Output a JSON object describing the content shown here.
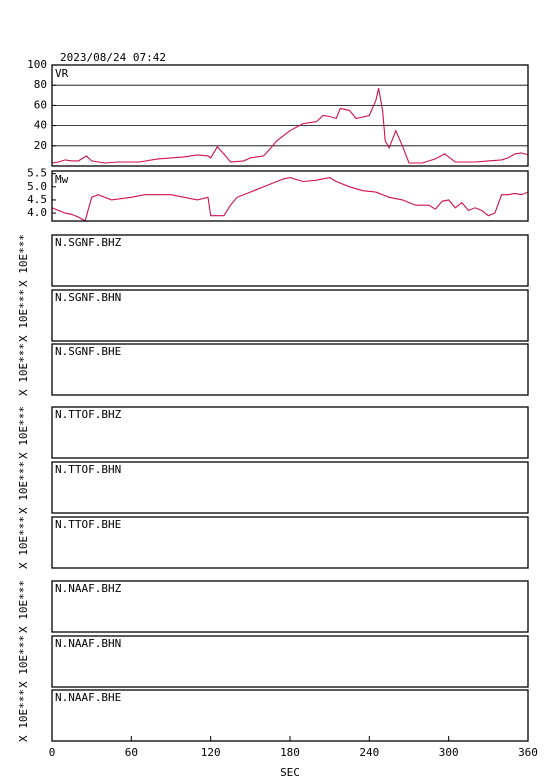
{
  "title": "2023/08/24 07:42",
  "chart_data": [
    {
      "type": "line",
      "label": "VR",
      "color": "#d0104c",
      "ylim": [
        0,
        100
      ],
      "yticks": [
        20,
        40,
        60,
        80,
        100
      ],
      "grid": true,
      "x": [
        0,
        5,
        10,
        15,
        20,
        26,
        30,
        40,
        50,
        60,
        66,
        80,
        90,
        100,
        110,
        118,
        120,
        125,
        130,
        135,
        145,
        150,
        160,
        165,
        170,
        180,
        190,
        200,
        205,
        210,
        215,
        218,
        225,
        230,
        240,
        245,
        247,
        250,
        252,
        255,
        260,
        265,
        270,
        280,
        290,
        297,
        305,
        320,
        330,
        340,
        345,
        350,
        355,
        360
      ],
      "values": [
        3,
        4,
        6,
        5,
        5,
        10,
        5,
        3,
        4,
        4,
        4,
        7,
        8,
        9,
        11,
        10,
        8,
        19,
        12,
        4,
        5,
        8,
        10,
        17,
        25,
        35,
        42,
        44,
        50,
        49,
        47,
        57,
        55,
        47,
        50,
        65,
        77,
        55,
        25,
        18,
        35,
        20,
        3,
        3,
        7,
        12,
        4,
        4,
        5,
        6,
        8,
        12,
        13,
        11
      ]
    },
    {
      "type": "line",
      "label": "Mw",
      "color": "#d0104c",
      "ylim": [
        3.7,
        5.6
      ],
      "yticks": [
        {
          "value": 4,
          "label": "4.0"
        },
        4.5,
        {
          "value": 5,
          "label": "5.0"
        },
        5.5
      ],
      "grid": false,
      "x": [
        0,
        5,
        10,
        15,
        20,
        25,
        30,
        35,
        45,
        60,
        70,
        80,
        90,
        100,
        110,
        118,
        120,
        130,
        135,
        140,
        150,
        160,
        170,
        175,
        180,
        190,
        200,
        210,
        215,
        225,
        235,
        245,
        255,
        265,
        275,
        285,
        290,
        295,
        300,
        305,
        310,
        315,
        320,
        325,
        330,
        335,
        340,
        345,
        350,
        355,
        360
      ],
      "values": [
        4.2,
        4.1,
        4.0,
        3.95,
        3.85,
        3.7,
        4.6,
        4.7,
        4.5,
        4.6,
        4.7,
        4.7,
        4.7,
        4.6,
        4.5,
        4.6,
        3.9,
        3.9,
        4.3,
        4.6,
        4.8,
        5.0,
        5.2,
        5.3,
        5.35,
        5.2,
        5.25,
        5.35,
        5.2,
        5.0,
        4.85,
        4.8,
        4.6,
        4.5,
        4.3,
        4.3,
        4.15,
        4.45,
        4.5,
        4.2,
        4.4,
        4.1,
        4.2,
        4.1,
        3.9,
        4.0,
        4.7,
        4.7,
        4.75,
        4.7,
        4.8
      ]
    }
  ],
  "traces": [
    {
      "station": "N.SGNF.BHZ",
      "unit": "X 10E***"
    },
    {
      "station": "N.SGNF.BHN",
      "unit": "X 10E***"
    },
    {
      "station": "N.SGNF.BHE",
      "unit": "X 10E***"
    },
    {
      "station": "N.TTOF.BHZ",
      "unit": "X 10E***"
    },
    {
      "station": "N.TTOF.BHN",
      "unit": "X 10E***"
    },
    {
      "station": "N.TTOF.BHE",
      "unit": "X 10E***"
    },
    {
      "station": "N.NAAF.BHZ",
      "unit": "X 10E***"
    },
    {
      "station": "N.NAAF.BHN",
      "unit": "X 10E***"
    },
    {
      "station": "N.NAAF.BHE",
      "unit": "X 10E***"
    }
  ],
  "x_axis": {
    "label": "SEC",
    "xlim": [
      0,
      360
    ],
    "xticks": [
      0,
      60,
      120,
      180,
      240,
      300,
      360
    ]
  }
}
